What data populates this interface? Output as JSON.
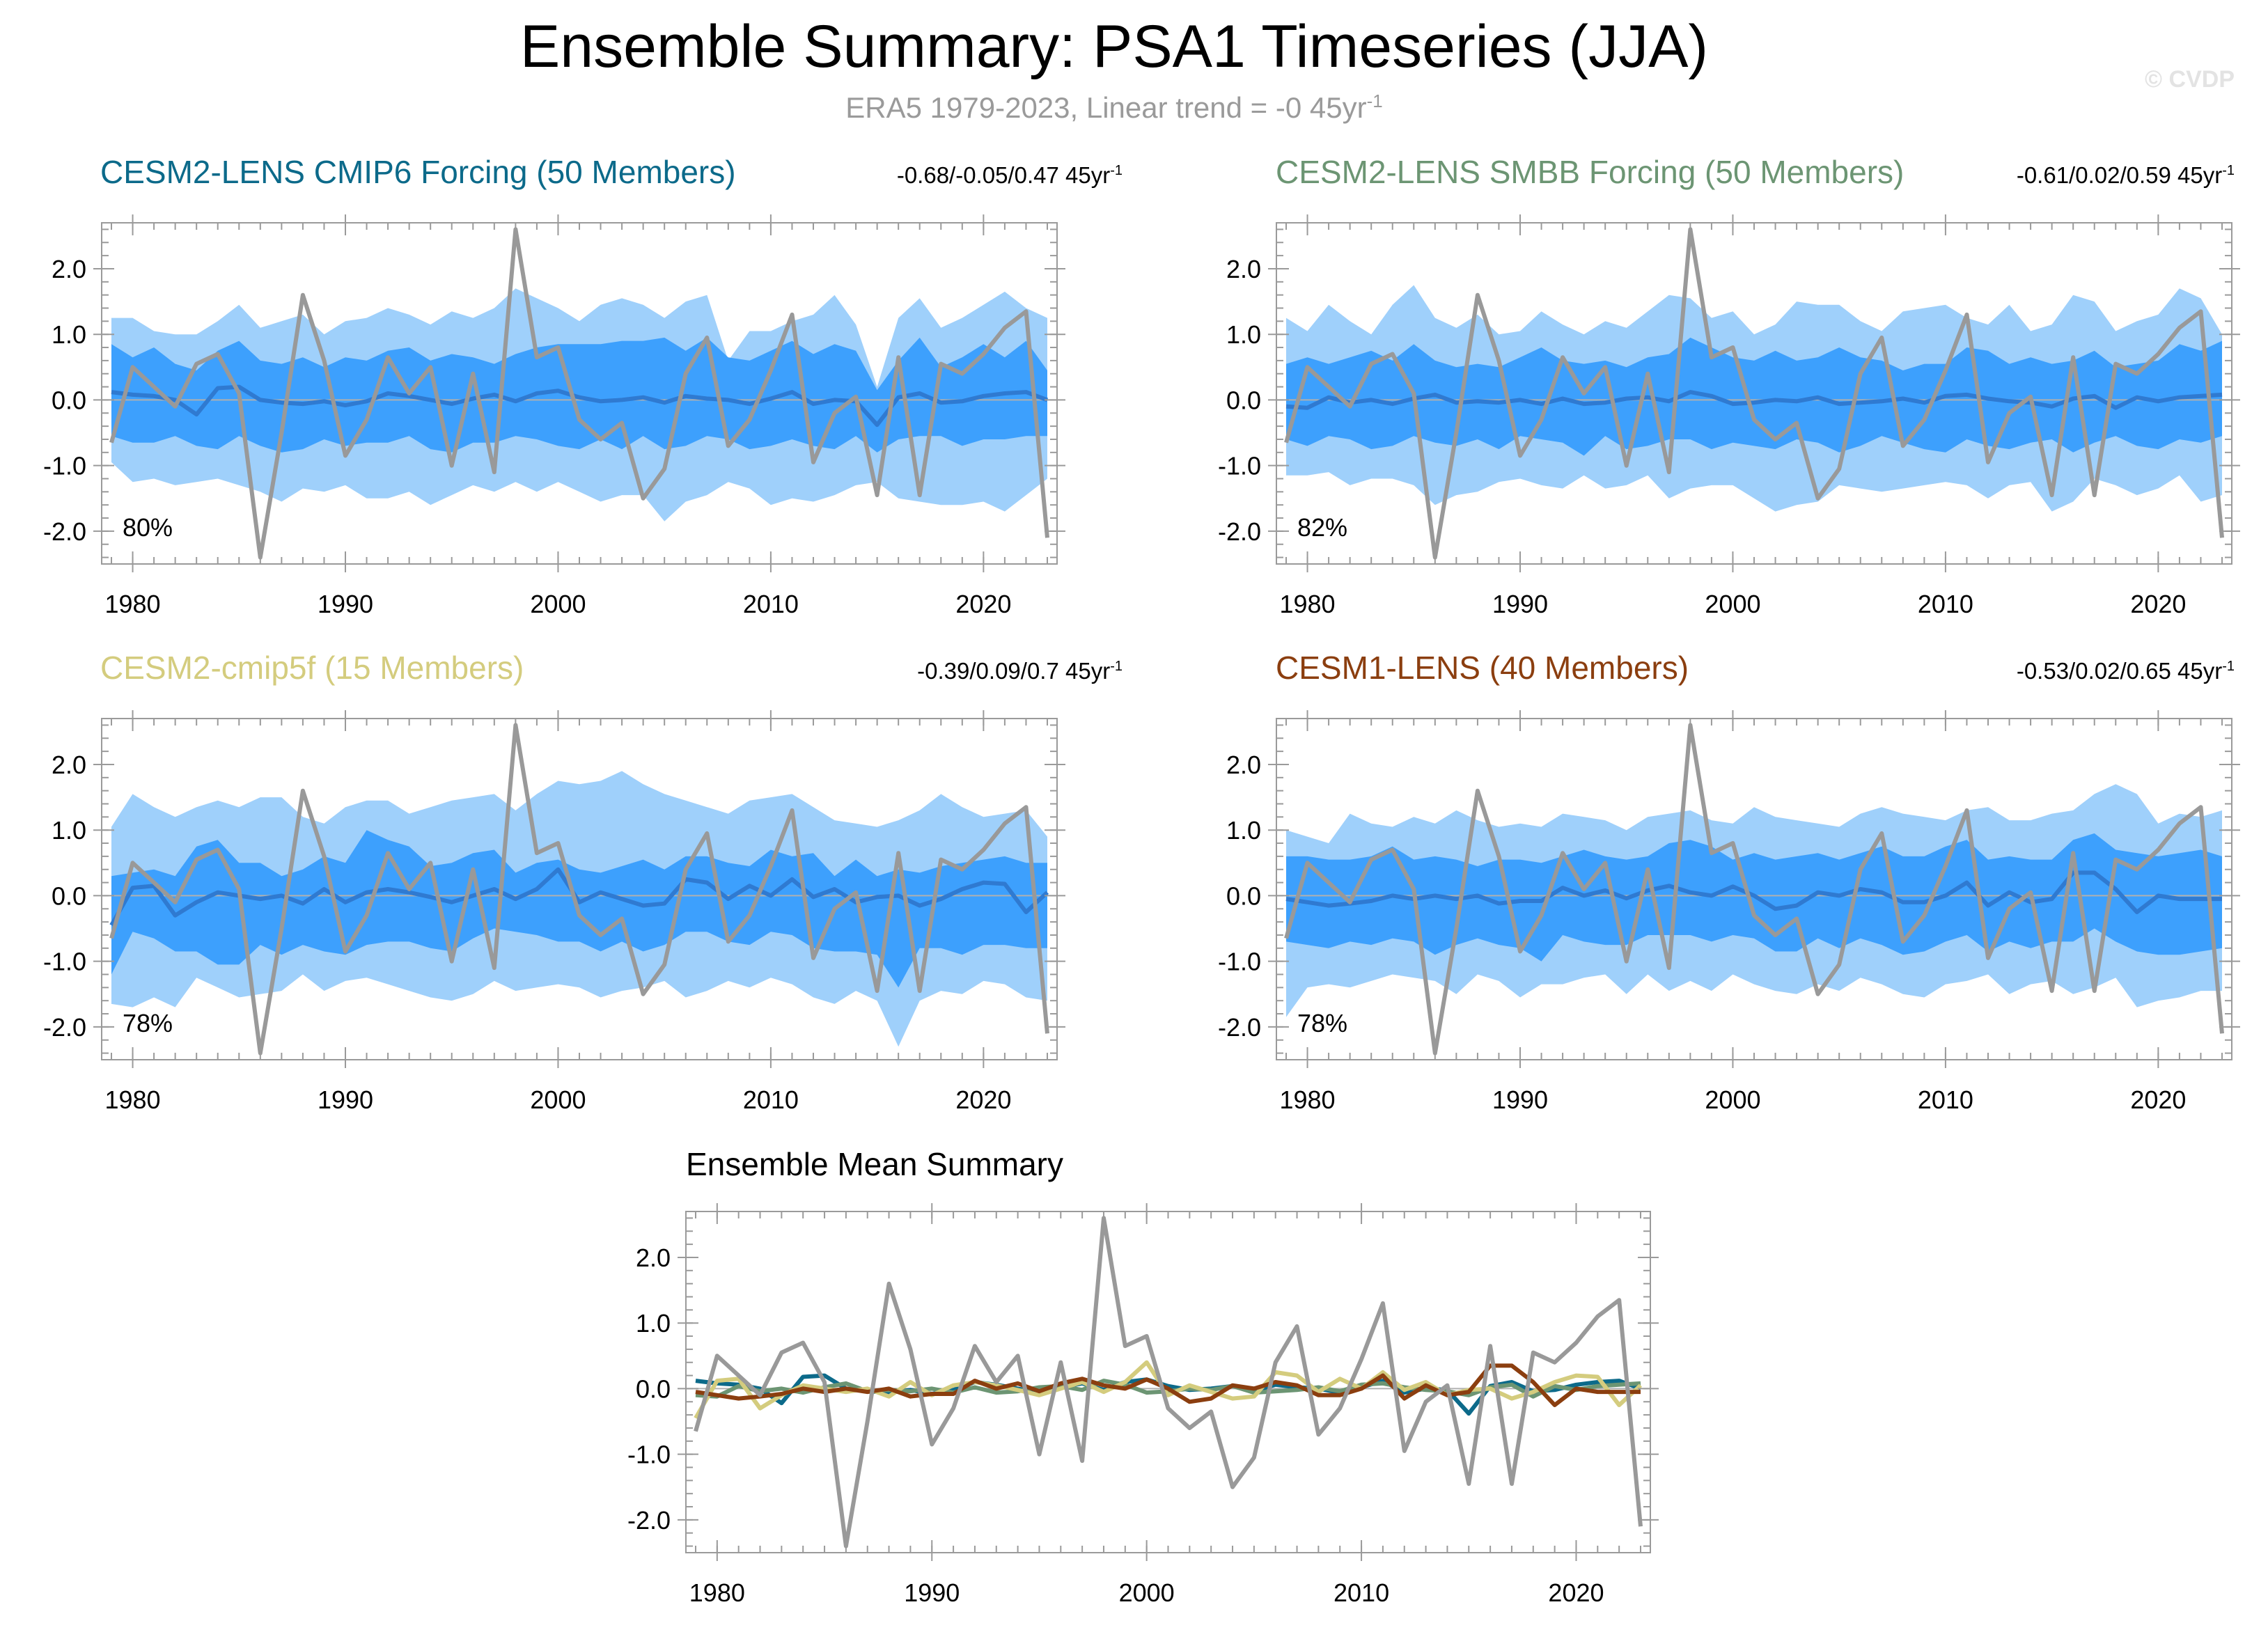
{
  "title": "Ensemble Summary: PSA1 Timeseries (JJA)",
  "subtitle": {
    "text": "ERA5 1979-2023, Linear trend = -0 45yr",
    "superscript": "-1"
  },
  "watermark": "© CVDP",
  "colors": {
    "outer_band": "#9fd0fb",
    "inner_band": "#3da0fd",
    "ens_mean": "#2f7ad1",
    "obs": "#999999",
    "zero_line": "#b0b0b0"
  },
  "panels": [
    {
      "title": "CESM2-LENS CMIP6 Forcing (50 Members)",
      "title_color": "#0c6a8a",
      "stats": "-0.68/-0.05/0.47 45yr",
      "stats_sup": "-1",
      "pct_label": "80%"
    },
    {
      "title": "CESM2-LENS SMBB Forcing (50 Members)",
      "title_color": "#6c9573",
      "stats": "-0.61/0.02/0.59 45yr",
      "stats_sup": "-1",
      "pct_label": "82%"
    },
    {
      "title": "CESM2-cmip5f (15 Members)",
      "title_color": "#d4cc7e",
      "stats": "-0.39/0.09/0.7 45yr",
      "stats_sup": "-1",
      "pct_label": "78%"
    },
    {
      "title": "CESM1-LENS (40 Members)",
      "title_color": "#8b3e0f",
      "stats": "-0.53/0.02/0.65 45yr",
      "stats_sup": "-1",
      "pct_label": "78%"
    }
  ],
  "mean_title": "Ensemble Mean Summary",
  "chart_data": [
    {
      "type": "line",
      "title": "Ensemble Summary: PSA1 Timeseries (JJA)",
      "x_range": [
        1979,
        2023
      ],
      "ylim": [
        -2.5,
        2.7
      ],
      "y_ticks": [
        2.0,
        1.0,
        0.0,
        -1.0,
        -2.0
      ],
      "y_tick_labels": [
        "2.0",
        "1.0",
        "0.0",
        "-1.0",
        "-2.0"
      ],
      "x_ticks": [
        1980,
        1990,
        2000,
        2010,
        2020
      ],
      "x_tick_labels": [
        "1980",
        "1990",
        "2000",
        "2010",
        "2020"
      ],
      "series": [
        {
          "name": "ERA5",
          "years_start": 1979,
          "values": [
            -0.65,
            0.5,
            0.2,
            -0.1,
            0.55,
            0.7,
            0.1,
            -2.4,
            -0.5,
            1.6,
            0.6,
            -0.85,
            -0.3,
            0.65,
            0.1,
            0.5,
            -1.0,
            0.4,
            -1.1,
            2.6,
            0.65,
            0.8,
            -0.3,
            -0.6,
            -0.35,
            -1.5,
            -1.05,
            0.4,
            0.95,
            -0.7,
            -0.3,
            0.45,
            1.3,
            -0.95,
            -0.2,
            0.05,
            -1.45,
            0.65,
            -1.45,
            0.55,
            0.4,
            0.7,
            1.1,
            1.35,
            -2.1
          ]
        }
      ]
    },
    {
      "type": "area",
      "panel": "CESM2-LENS CMIP6 Forcing (50 Members)",
      "years_start": 1979,
      "ens_mean": [
        0.12,
        0.08,
        0.06,
        0.0,
        -0.22,
        0.18,
        0.2,
        0.0,
        -0.04,
        -0.06,
        -0.02,
        -0.08,
        -0.02,
        0.1,
        0.06,
        0.0,
        -0.06,
        0.02,
        0.08,
        -0.02,
        0.1,
        0.14,
        0.04,
        -0.02,
        0.0,
        0.04,
        -0.04,
        0.06,
        0.02,
        0.0,
        -0.06,
        0.02,
        0.12,
        -0.06,
        0.0,
        -0.02,
        -0.38,
        0.04,
        0.1,
        -0.04,
        -0.02,
        0.06,
        0.1,
        0.12,
        0.0
      ],
      "inner_upper": [
        0.85,
        0.65,
        0.8,
        0.55,
        0.45,
        0.75,
        0.9,
        0.6,
        0.55,
        0.65,
        0.5,
        0.65,
        0.6,
        0.75,
        0.8,
        0.6,
        0.7,
        0.65,
        0.55,
        0.7,
        0.8,
        0.85,
        0.85,
        0.85,
        0.9,
        0.9,
        0.95,
        0.75,
        0.95,
        0.65,
        0.6,
        0.75,
        0.9,
        0.7,
        0.85,
        0.75,
        0.15,
        0.6,
        0.95,
        0.5,
        0.65,
        0.85,
        0.65,
        0.9,
        0.45
      ],
      "inner_lower": [
        -0.55,
        -0.65,
        -0.65,
        -0.55,
        -0.7,
        -0.75,
        -0.55,
        -0.7,
        -0.8,
        -0.75,
        -0.6,
        -0.7,
        -0.65,
        -0.65,
        -0.55,
        -0.75,
        -0.8,
        -0.65,
        -0.65,
        -0.55,
        -0.6,
        -0.7,
        -0.75,
        -0.6,
        -0.75,
        -0.55,
        -0.75,
        -0.7,
        -0.55,
        -0.6,
        -0.75,
        -0.7,
        -0.6,
        -0.7,
        -0.75,
        -0.55,
        -0.8,
        -0.6,
        -0.55,
        -0.55,
        -0.7,
        -0.6,
        -0.6,
        -0.55,
        -0.55
      ],
      "outer_upper": [
        1.25,
        1.25,
        1.05,
        1.0,
        1.0,
        1.2,
        1.45,
        1.1,
        1.2,
        1.3,
        1.0,
        1.2,
        1.25,
        1.4,
        1.3,
        1.15,
        1.35,
        1.25,
        1.4,
        1.7,
        1.55,
        1.4,
        1.2,
        1.45,
        1.55,
        1.45,
        1.25,
        1.5,
        1.6,
        0.6,
        1.05,
        1.05,
        1.2,
        1.3,
        1.6,
        1.15,
        0.2,
        1.25,
        1.55,
        1.1,
        1.25,
        1.45,
        1.65,
        1.4,
        1.25
      ],
      "outer_lower": [
        -0.95,
        -1.25,
        -1.2,
        -1.3,
        -1.25,
        -1.2,
        -1.3,
        -1.4,
        -1.55,
        -1.35,
        -1.4,
        -1.3,
        -1.5,
        -1.5,
        -1.4,
        -1.6,
        -1.45,
        -1.3,
        -1.4,
        -1.25,
        -1.4,
        -1.25,
        -1.4,
        -1.55,
        -1.45,
        -1.45,
        -1.85,
        -1.55,
        -1.45,
        -1.25,
        -1.35,
        -1.6,
        -1.5,
        -1.55,
        -1.45,
        -1.3,
        -1.25,
        -1.5,
        -1.55,
        -1.6,
        -1.6,
        -1.55,
        -1.7,
        -1.45,
        -1.2
      ]
    },
    {
      "type": "area",
      "panel": "CESM2-LENS SMBB Forcing (50 Members)",
      "years_start": 1979,
      "ens_mean": [
        -0.1,
        -0.12,
        0.04,
        -0.04,
        0.0,
        -0.06,
        0.02,
        0.08,
        -0.04,
        -0.02,
        -0.04,
        0.0,
        -0.06,
        0.02,
        -0.06,
        -0.04,
        0.02,
        0.04,
        -0.02,
        0.12,
        0.06,
        -0.06,
        -0.04,
        0.0,
        -0.02,
        0.04,
        -0.06,
        -0.04,
        -0.02,
        0.02,
        -0.04,
        0.06,
        0.08,
        0.02,
        -0.02,
        -0.04,
        -0.1,
        0.02,
        0.06,
        -0.12,
        0.04,
        -0.02,
        0.04,
        0.06,
        0.08
      ],
      "inner_upper": [
        0.55,
        0.65,
        0.55,
        0.65,
        0.75,
        0.6,
        0.85,
        0.6,
        0.5,
        0.55,
        0.5,
        0.65,
        0.8,
        0.6,
        0.55,
        0.6,
        0.5,
        0.65,
        0.7,
        0.95,
        0.8,
        0.65,
        0.6,
        0.75,
        0.6,
        0.65,
        0.8,
        0.65,
        0.6,
        0.45,
        0.55,
        0.55,
        0.8,
        0.75,
        0.55,
        0.65,
        0.55,
        0.6,
        0.75,
        0.5,
        0.55,
        0.6,
        0.85,
        0.75,
        0.9
      ],
      "inner_lower": [
        -0.6,
        -0.7,
        -0.55,
        -0.6,
        -0.75,
        -0.7,
        -0.55,
        -0.65,
        -0.7,
        -0.6,
        -0.75,
        -0.55,
        -0.6,
        -0.65,
        -0.85,
        -0.55,
        -0.75,
        -0.7,
        -0.6,
        -0.6,
        -0.75,
        -0.65,
        -0.7,
        -0.75,
        -0.6,
        -0.65,
        -0.8,
        -0.7,
        -0.55,
        -0.65,
        -0.75,
        -0.8,
        -0.6,
        -0.7,
        -0.75,
        -0.65,
        -0.6,
        -0.8,
        -0.65,
        -0.55,
        -0.7,
        -0.75,
        -0.6,
        -0.65,
        -0.55
      ],
      "outer_upper": [
        1.25,
        1.05,
        1.45,
        1.2,
        1.0,
        1.45,
        1.75,
        1.25,
        1.1,
        1.3,
        1.0,
        1.05,
        1.35,
        1.15,
        1.0,
        1.2,
        1.1,
        1.35,
        1.6,
        1.55,
        1.25,
        1.35,
        1.0,
        1.15,
        1.5,
        1.45,
        1.45,
        1.2,
        1.05,
        1.35,
        1.4,
        1.45,
        1.25,
        1.15,
        1.45,
        1.05,
        1.15,
        1.6,
        1.5,
        1.05,
        1.2,
        1.3,
        1.7,
        1.55,
        1.0
      ],
      "outer_lower": [
        -1.15,
        -1.15,
        -1.1,
        -1.3,
        -1.2,
        -1.2,
        -1.3,
        -1.6,
        -1.45,
        -1.4,
        -1.25,
        -1.2,
        -1.3,
        -1.35,
        -1.15,
        -1.35,
        -1.3,
        -1.15,
        -1.5,
        -1.35,
        -1.3,
        -1.3,
        -1.5,
        -1.7,
        -1.6,
        -1.55,
        -1.3,
        -1.35,
        -1.4,
        -1.35,
        -1.3,
        -1.25,
        -1.3,
        -1.5,
        -1.3,
        -1.25,
        -1.7,
        -1.55,
        -1.2,
        -1.3,
        -1.45,
        -1.35,
        -1.15,
        -1.55,
        -1.45
      ]
    },
    {
      "type": "area",
      "panel": "CESM2-cmip5f (15 Members)",
      "years_start": 1979,
      "ens_mean": [
        -0.45,
        0.12,
        0.15,
        -0.3,
        -0.1,
        0.05,
        0.0,
        -0.05,
        0.0,
        -0.12,
        0.1,
        -0.1,
        0.05,
        0.1,
        0.05,
        -0.02,
        -0.1,
        0.0,
        0.1,
        -0.05,
        0.1,
        0.4,
        -0.1,
        0.05,
        -0.05,
        -0.15,
        -0.12,
        0.25,
        0.2,
        -0.05,
        0.15,
        0.0,
        0.25,
        -0.02,
        0.1,
        -0.1,
        -0.02,
        0.0,
        -0.15,
        -0.05,
        0.1,
        0.2,
        0.18,
        -0.25,
        0.05
      ],
      "inner_upper": [
        0.3,
        0.35,
        0.4,
        0.3,
        0.75,
        0.85,
        0.5,
        0.5,
        0.3,
        0.4,
        0.6,
        0.5,
        1.0,
        0.85,
        0.75,
        0.45,
        0.5,
        0.65,
        0.7,
        0.35,
        0.5,
        0.55,
        0.4,
        0.35,
        0.45,
        0.55,
        0.4,
        0.6,
        0.6,
        0.5,
        0.45,
        0.7,
        0.6,
        0.65,
        0.3,
        0.55,
        0.3,
        0.4,
        0.35,
        0.45,
        0.5,
        0.55,
        0.6,
        0.5,
        0.5
      ],
      "inner_lower": [
        -1.2,
        -0.55,
        -0.65,
        -0.85,
        -0.85,
        -1.05,
        -1.05,
        -0.75,
        -0.9,
        -0.75,
        -0.85,
        -0.9,
        -0.75,
        -0.7,
        -0.7,
        -0.8,
        -0.85,
        -0.65,
        -0.5,
        -0.55,
        -0.6,
        -0.7,
        -0.7,
        -0.85,
        -0.7,
        -0.85,
        -0.75,
        -0.55,
        -0.55,
        -0.7,
        -0.75,
        -0.55,
        -0.6,
        -0.8,
        -0.85,
        -0.85,
        -0.9,
        -1.4,
        -0.8,
        -0.8,
        -0.9,
        -0.75,
        -0.75,
        -0.8,
        -0.8
      ],
      "outer_upper": [
        1.05,
        1.55,
        1.35,
        1.2,
        1.35,
        1.45,
        1.35,
        1.5,
        1.5,
        1.2,
        1.1,
        1.35,
        1.45,
        1.45,
        1.25,
        1.35,
        1.45,
        1.5,
        1.55,
        1.3,
        1.55,
        1.75,
        1.7,
        1.75,
        1.9,
        1.7,
        1.55,
        1.45,
        1.35,
        1.25,
        1.45,
        1.5,
        1.55,
        1.35,
        1.15,
        1.1,
        1.05,
        1.15,
        1.3,
        1.55,
        1.35,
        1.2,
        1.25,
        1.3,
        0.9
      ],
      "outer_lower": [
        -1.65,
        -1.7,
        -1.55,
        -1.7,
        -1.25,
        -1.4,
        -1.55,
        -1.5,
        -1.45,
        -1.2,
        -1.45,
        -1.3,
        -1.25,
        -1.35,
        -1.45,
        -1.55,
        -1.6,
        -1.5,
        -1.3,
        -1.45,
        -1.4,
        -1.35,
        -1.4,
        -1.55,
        -1.45,
        -1.4,
        -1.3,
        -1.55,
        -1.45,
        -1.3,
        -1.4,
        -1.25,
        -1.35,
        -1.55,
        -1.65,
        -1.45,
        -1.6,
        -2.3,
        -1.6,
        -1.45,
        -1.5,
        -1.3,
        -1.35,
        -1.55,
        -1.6
      ]
    },
    {
      "type": "area",
      "panel": "CESM1-LENS (40 Members)",
      "years_start": 1979,
      "ens_mean": [
        -0.05,
        -0.1,
        -0.15,
        -0.12,
        -0.08,
        0.0,
        -0.05,
        0.0,
        -0.05,
        0.0,
        -0.12,
        -0.08,
        -0.08,
        0.12,
        0.0,
        0.08,
        -0.04,
        0.08,
        0.15,
        0.05,
        0.0,
        0.14,
        0.0,
        -0.2,
        -0.15,
        0.05,
        0.0,
        0.1,
        0.05,
        -0.1,
        -0.1,
        0.0,
        0.2,
        -0.15,
        0.05,
        -0.1,
        -0.05,
        0.35,
        0.35,
        0.1,
        -0.25,
        0.0,
        -0.05,
        -0.05,
        -0.05
      ],
      "inner_upper": [
        0.6,
        0.6,
        0.55,
        0.55,
        0.6,
        0.75,
        0.55,
        0.6,
        0.55,
        0.45,
        0.55,
        0.55,
        0.5,
        0.6,
        0.7,
        0.6,
        0.55,
        0.6,
        0.8,
        0.85,
        0.75,
        0.55,
        0.65,
        0.55,
        0.6,
        0.65,
        0.55,
        0.65,
        0.75,
        0.6,
        0.6,
        0.75,
        0.85,
        0.55,
        0.6,
        0.55,
        0.55,
        0.85,
        0.95,
        0.7,
        0.65,
        0.6,
        0.65,
        0.7,
        0.6
      ],
      "inner_lower": [
        -0.7,
        -0.75,
        -0.8,
        -0.7,
        -0.75,
        -0.65,
        -0.7,
        -0.9,
        -0.75,
        -0.65,
        -0.75,
        -0.8,
        -1.0,
        -0.6,
        -0.7,
        -0.75,
        -0.75,
        -0.6,
        -0.6,
        -0.6,
        -0.7,
        -0.6,
        -0.65,
        -0.85,
        -0.85,
        -0.65,
        -0.8,
        -0.65,
        -0.75,
        -0.9,
        -0.85,
        -0.7,
        -0.6,
        -0.85,
        -0.7,
        -0.8,
        -0.7,
        -0.7,
        -0.5,
        -0.7,
        -0.85,
        -0.9,
        -0.9,
        -0.85,
        -0.8
      ],
      "outer_upper": [
        1.0,
        0.9,
        0.8,
        1.25,
        1.1,
        1.05,
        1.2,
        1.1,
        1.3,
        1.15,
        1.05,
        1.1,
        1.05,
        1.25,
        1.2,
        1.15,
        1.0,
        1.2,
        1.25,
        1.3,
        1.15,
        1.1,
        1.35,
        1.2,
        1.15,
        1.1,
        1.05,
        1.25,
        1.35,
        1.25,
        1.2,
        1.15,
        1.3,
        1.35,
        1.15,
        1.15,
        1.25,
        1.3,
        1.55,
        1.7,
        1.55,
        1.1,
        1.25,
        1.2,
        1.3
      ],
      "outer_lower": [
        -1.85,
        -1.4,
        -1.35,
        -1.4,
        -1.3,
        -1.2,
        -1.25,
        -1.3,
        -1.5,
        -1.2,
        -1.3,
        -1.55,
        -1.35,
        -1.35,
        -1.25,
        -1.2,
        -1.5,
        -1.2,
        -1.45,
        -1.3,
        -1.45,
        -1.2,
        -1.35,
        -1.45,
        -1.5,
        -1.35,
        -1.45,
        -1.25,
        -1.35,
        -1.5,
        -1.55,
        -1.35,
        -1.3,
        -1.2,
        -1.5,
        -1.35,
        -1.3,
        -1.5,
        -1.4,
        -1.25,
        -1.7,
        -1.6,
        -1.55,
        -1.45,
        -1.45
      ]
    },
    {
      "type": "line",
      "title": "Ensemble Mean Summary",
      "years_start": 1979,
      "series": [
        {
          "name": "CESM2-LENS CMIP6 Forcing",
          "color": "#0c6a8a"
        },
        {
          "name": "CESM2-LENS SMBB Forcing",
          "color": "#6c9573"
        },
        {
          "name": "CESM2-cmip5f",
          "color": "#d4cc7e"
        },
        {
          "name": "CESM1-LENS",
          "color": "#8b3e0f"
        },
        {
          "name": "ERA5",
          "color": "#999999"
        }
      ]
    }
  ]
}
